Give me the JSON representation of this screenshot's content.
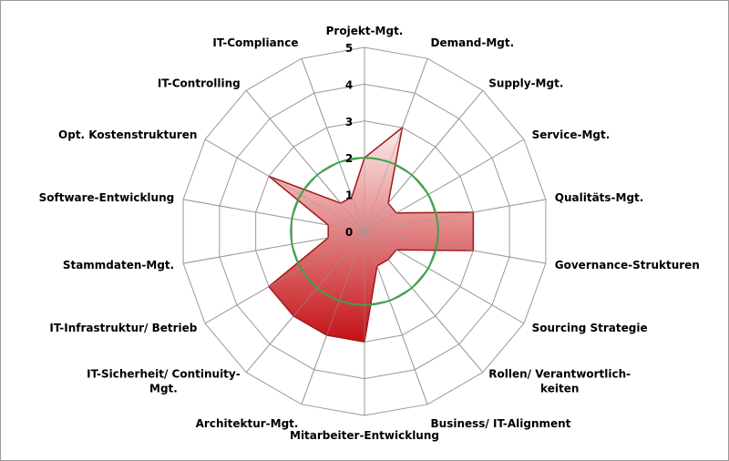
{
  "chart_data": {
    "type": "radar",
    "title": "",
    "rmax": 5,
    "ticks": [
      "0",
      "1",
      "2",
      "3",
      "4",
      "5"
    ],
    "categories": [
      "Projekt-Mgt.",
      "Demand-Mgt.",
      "Supply-Mgt.",
      "Service-Mgt.",
      "Qualitäts-Mgt.",
      "Governance-Strukturen",
      "Sourcing Strategie",
      "Rollen/ Verantwortlich-|keiten",
      "Business/ IT-Alignment",
      "Mitarbeiter-Entwicklung",
      "Architektur-Mgt.",
      "IT-Sicherheit/ Continuity-|Mgt.",
      "IT-Infrastruktur/ Betrieb",
      "Stammdaten-Mgt.",
      "Software-Entwicklung",
      "Opt. Kostenstrukturen",
      "IT-Controlling",
      "IT-Compliance"
    ],
    "series": [
      {
        "values": [
          2,
          3,
          1,
          1,
          3,
          3,
          1,
          1,
          1,
          3,
          3,
          3,
          3,
          1,
          1,
          3,
          1,
          1
        ],
        "stroke": "#a01818",
        "fill_top": "#fdeceb",
        "fill_bottom": "#c51116"
      },
      {
        "values": [
          2,
          2,
          2,
          2,
          2,
          2,
          2,
          2,
          2,
          2,
          2,
          2,
          2,
          2,
          2,
          2,
          2,
          2
        ],
        "stroke": "#3aa347"
      }
    ],
    "grid": true,
    "grid_color": "#999999"
  }
}
